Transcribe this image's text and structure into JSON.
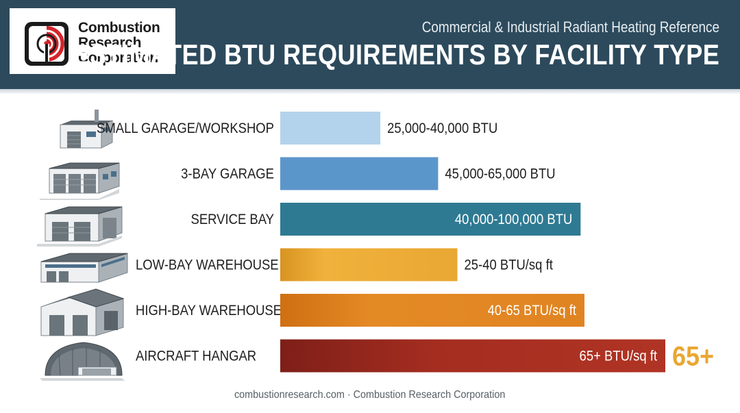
{
  "brand": {
    "name_lines": [
      "Combustion",
      "Research",
      "Corporation"
    ],
    "red": "#d6242b",
    "dark": "#1b1b1b"
  },
  "header": {
    "subtitle": "Commercial & Industrial Radiant Heating Reference",
    "title": "ESTIMATED BTU REQUIREMENTS BY FACILITY TYPE",
    "background": "#2d4a5c"
  },
  "chart_data": {
    "type": "bar",
    "orientation": "horizontal",
    "title": "ESTIMATED BTU REQUIREMENTS BY FACILITY TYPE",
    "categories": [
      "SMALL GARAGE/WORKSHOP",
      "3-BAY GARAGE",
      "SERVICE BAY",
      "LOW-BAY WAREHOUSE",
      "HIGH-BAY WAREHOUSE",
      "AIRCRAFT HANGAR"
    ],
    "values": [
      26,
      41,
      78,
      46,
      79,
      100
    ],
    "value_labels": [
      "25,000-40,000 BTU",
      "45,000-65,000 BTU",
      "40,000-100,000 BTU",
      "25-40 BTU/sq ft",
      "40-65 BTU/sq ft",
      "65+ BTU/sq ft"
    ],
    "label_inside": [
      false,
      false,
      true,
      false,
      true,
      true
    ],
    "colors": [
      "#b3d3ec",
      "#5b96cb",
      "#2f7a93",
      "#e9a733",
      "#e08422",
      "#9e2a20"
    ],
    "icons": [
      "small-garage-icon",
      "three-bay-garage-icon",
      "service-bay-icon",
      "low-bay-warehouse-icon",
      "high-bay-warehouse-icon",
      "aircraft-hangar-icon"
    ],
    "callout": {
      "text": "65+",
      "color": "#e9a733",
      "category_index": 5
    },
    "xlim": [
      0,
      100
    ],
    "grid": false,
    "legend": "none"
  },
  "footer": {
    "text": "combustionresearch.com · Combustion Research Corporation"
  }
}
